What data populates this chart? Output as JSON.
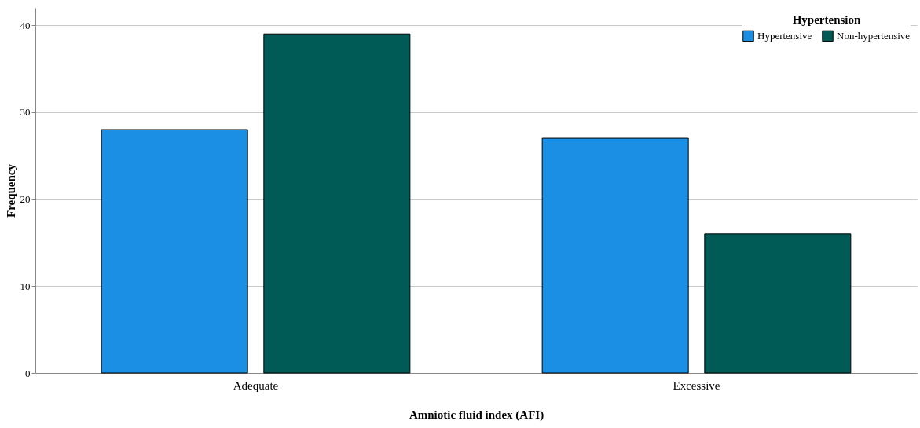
{
  "chart_data": {
    "type": "bar",
    "xlabel": "Amniotic fluid index (AFI)",
    "ylabel": "Frequency",
    "legend_title": "Hypertension",
    "categories": [
      "Adequate",
      "Excessive"
    ],
    "series": [
      {
        "name": "Hypertensive",
        "color": "#1a8fe3",
        "values": [
          28,
          27
        ]
      },
      {
        "name": "Non-hypertensive",
        "color": "#005b57",
        "values": [
          39,
          16
        ]
      }
    ],
    "ylim": [
      0,
      42
    ],
    "yticks": [
      0,
      10,
      20,
      30,
      40
    ],
    "grid": "y",
    "legend": "top right"
  }
}
